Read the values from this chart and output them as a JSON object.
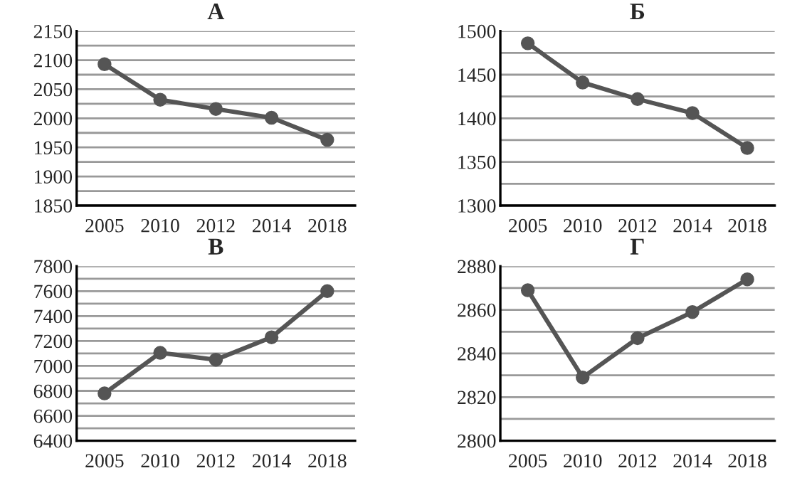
{
  "chart_data": [
    {
      "type": "line",
      "title": "А",
      "categories": [
        "2005",
        "2010",
        "2012",
        "2014",
        "2018"
      ],
      "series": [
        {
          "color": "#555555",
          "values": [
            2093,
            2032,
            2016,
            2001,
            1963
          ]
        }
      ],
      "ylim": [
        1850,
        2150
      ],
      "yticks": [
        1850,
        {
          "value": 1875,
          "label": null
        },
        1900,
        {
          "value": 1925,
          "label": null
        },
        1950,
        {
          "value": 1975,
          "label": null
        },
        2000,
        {
          "value": 2025,
          "label": null
        },
        2050,
        {
          "value": 2075,
          "label": null
        },
        2100,
        {
          "value": 2125,
          "label": null
        },
        2150
      ],
      "grid": "y",
      "marker": "circle",
      "line_style": "solid"
    },
    {
      "type": "line",
      "title": "Б",
      "categories": [
        "2005",
        "2010",
        "2012",
        "2014",
        "2018"
      ],
      "series": [
        {
          "color": "#555555",
          "values": [
            1486,
            1441,
            1422,
            1406,
            1366
          ]
        }
      ],
      "ylim": [
        1300,
        1500
      ],
      "yticks": [
        1300,
        {
          "value": 1325,
          "label": null
        },
        1350,
        {
          "value": 1375,
          "label": null
        },
        1400,
        {
          "value": 1425,
          "label": null
        },
        1450,
        {
          "value": 1475,
          "label": null
        },
        1500
      ],
      "grid": "y",
      "marker": "circle",
      "line_style": "solid"
    },
    {
      "type": "line",
      "title": "В",
      "categories": [
        "2005",
        "2010",
        "2012",
        "2014",
        "2018"
      ],
      "series": [
        {
          "color": "#555555",
          "values": [
            6780,
            7105,
            7050,
            7230,
            7600
          ]
        }
      ],
      "ylim": [
        6400,
        7800
      ],
      "yticks": [
        6400,
        {
          "value": 6500,
          "label": null
        },
        6600,
        {
          "value": 6700,
          "label": null
        },
        6800,
        {
          "value": 6900,
          "label": null
        },
        7000,
        {
          "value": 7100,
          "label": null
        },
        7200,
        {
          "value": 7300,
          "label": null
        },
        7400,
        {
          "value": 7500,
          "label": null
        },
        7600,
        {
          "value": 7700,
          "label": null
        },
        7800
      ],
      "grid": "y",
      "marker": "circle",
      "line_style": "solid"
    },
    {
      "type": "line",
      "title": "Г",
      "categories": [
        "2005",
        "2010",
        "2012",
        "2014",
        "2018"
      ],
      "series": [
        {
          "color": "#555555",
          "values": [
            2869,
            2829,
            2847,
            2859,
            2874
          ]
        }
      ],
      "ylim": [
        2800,
        2880
      ],
      "yticks": [
        2800,
        {
          "value": 2810,
          "label": null
        },
        2820,
        {
          "value": 2830,
          "label": null
        },
        2840,
        {
          "value": 2850,
          "label": null
        },
        2860,
        {
          "value": 2870,
          "label": null
        },
        2880
      ],
      "grid": "y",
      "marker": "circle",
      "line_style": "solid"
    }
  ]
}
